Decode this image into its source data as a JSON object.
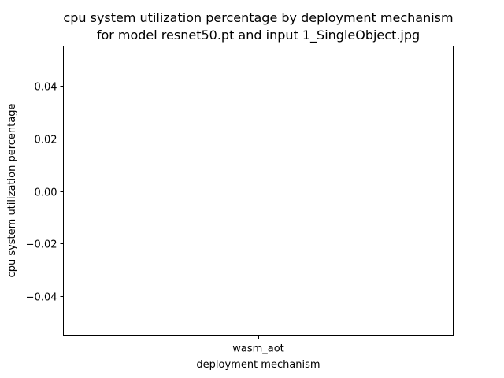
{
  "chart_data": {
    "type": "bar",
    "title_lines": [
      "cpu system utilization percentage by deployment mechanism",
      "for model resnet50.pt and input 1_SingleObject.jpg"
    ],
    "xlabel": "deployment mechanism",
    "ylabel": "cpu system utilization percentage",
    "categories": [
      "wasm_aot"
    ],
    "values": [
      0
    ],
    "ylim": [
      -0.055,
      0.055
    ],
    "yticks": [
      -0.04,
      -0.02,
      0.0,
      0.02,
      0.04
    ],
    "ytick_labels": [
      "−0.04",
      "−0.02",
      "0.00",
      "0.02",
      "0.04"
    ],
    "grid": false,
    "legend": false
  }
}
